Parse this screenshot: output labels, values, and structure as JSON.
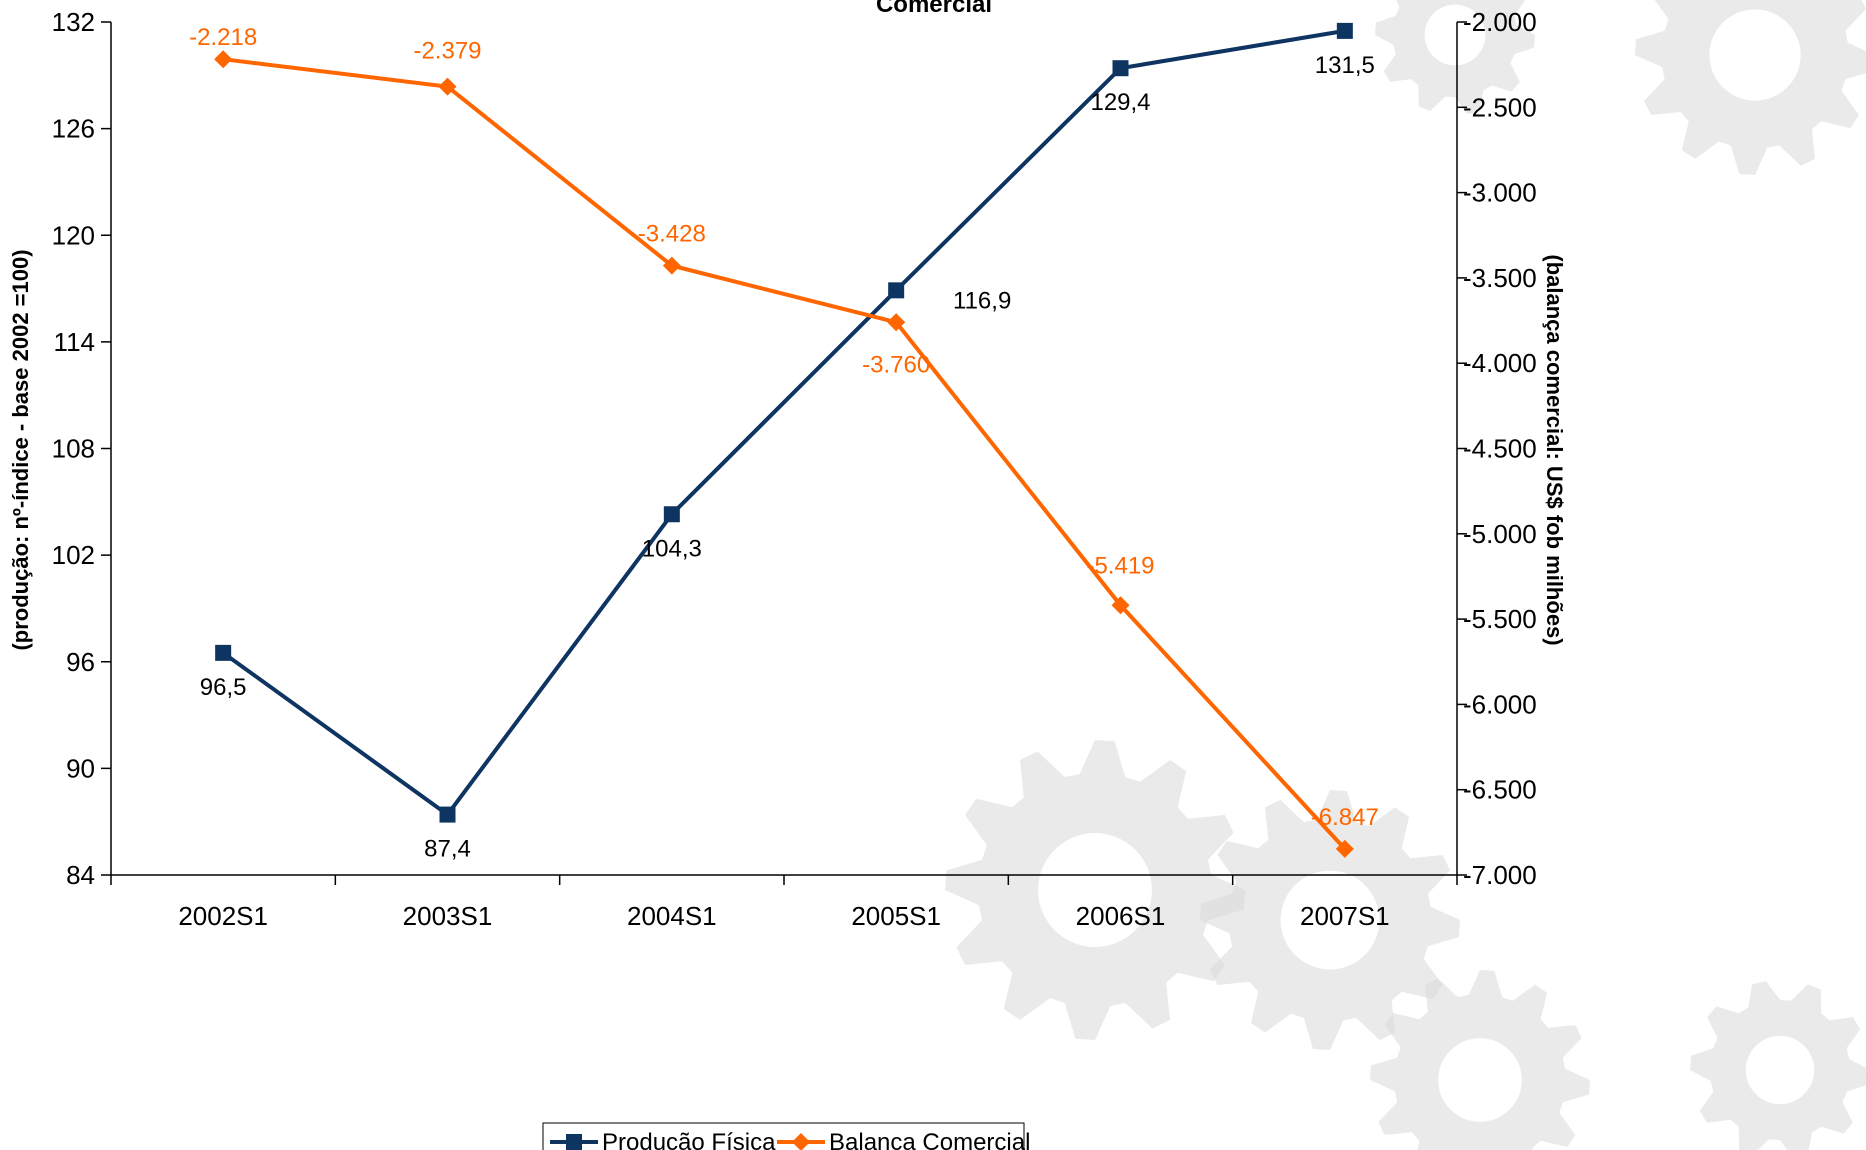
{
  "chart_data": {
    "type": "line",
    "title": "Comercial",
    "categories": [
      "2002S1",
      "2003S1",
      "2004S1",
      "2005S1",
      "2006S1",
      "2007S1"
    ],
    "y_left": {
      "label": "(produção: nº-índice - base 2002 =100)",
      "ylim": [
        84,
        132
      ],
      "ticks": [
        84,
        90,
        96,
        102,
        108,
        114,
        120,
        126,
        132
      ],
      "tick_labels": [
        "84",
        "90",
        "96",
        "102",
        "108",
        "114",
        "120",
        "126",
        "132"
      ]
    },
    "y_right": {
      "label": "(balança comercial: US$ fob milhões)",
      "ylim": [
        -7000,
        -2000
      ],
      "ticks": [
        -7000,
        -6500,
        -6000,
        -5500,
        -5000,
        -4500,
        -4000,
        -3500,
        -3000,
        -2500,
        -2000
      ],
      "tick_labels": [
        "-7.000",
        "-6.500",
        "-6.000",
        "-5.500",
        "-5.000",
        "-4.500",
        "-4.000",
        "-3.500",
        "-3.000",
        "-2.500",
        "-2.000"
      ]
    },
    "series": [
      {
        "name": "Produção Física",
        "axis": "left",
        "color": "#0e3461",
        "marker": "square",
        "values": [
          96.5,
          87.4,
          104.3,
          116.9,
          129.4,
          131.5
        ],
        "labels": [
          "96,5",
          "87,4",
          "104,3",
          "116,9",
          "129,4",
          "131,5"
        ]
      },
      {
        "name": "Balança Comercial",
        "axis": "right",
        "color": "#ff6600",
        "marker": "diamond",
        "values": [
          -2218,
          -2379,
          -3428,
          -3760,
          -5419,
          -6847
        ],
        "labels": [
          "-2.218",
          "-2.379",
          "-3.428",
          "-3.760",
          "-5.419",
          "-6.847"
        ]
      }
    ],
    "legend_position": "bottom-center",
    "grid": false
  }
}
